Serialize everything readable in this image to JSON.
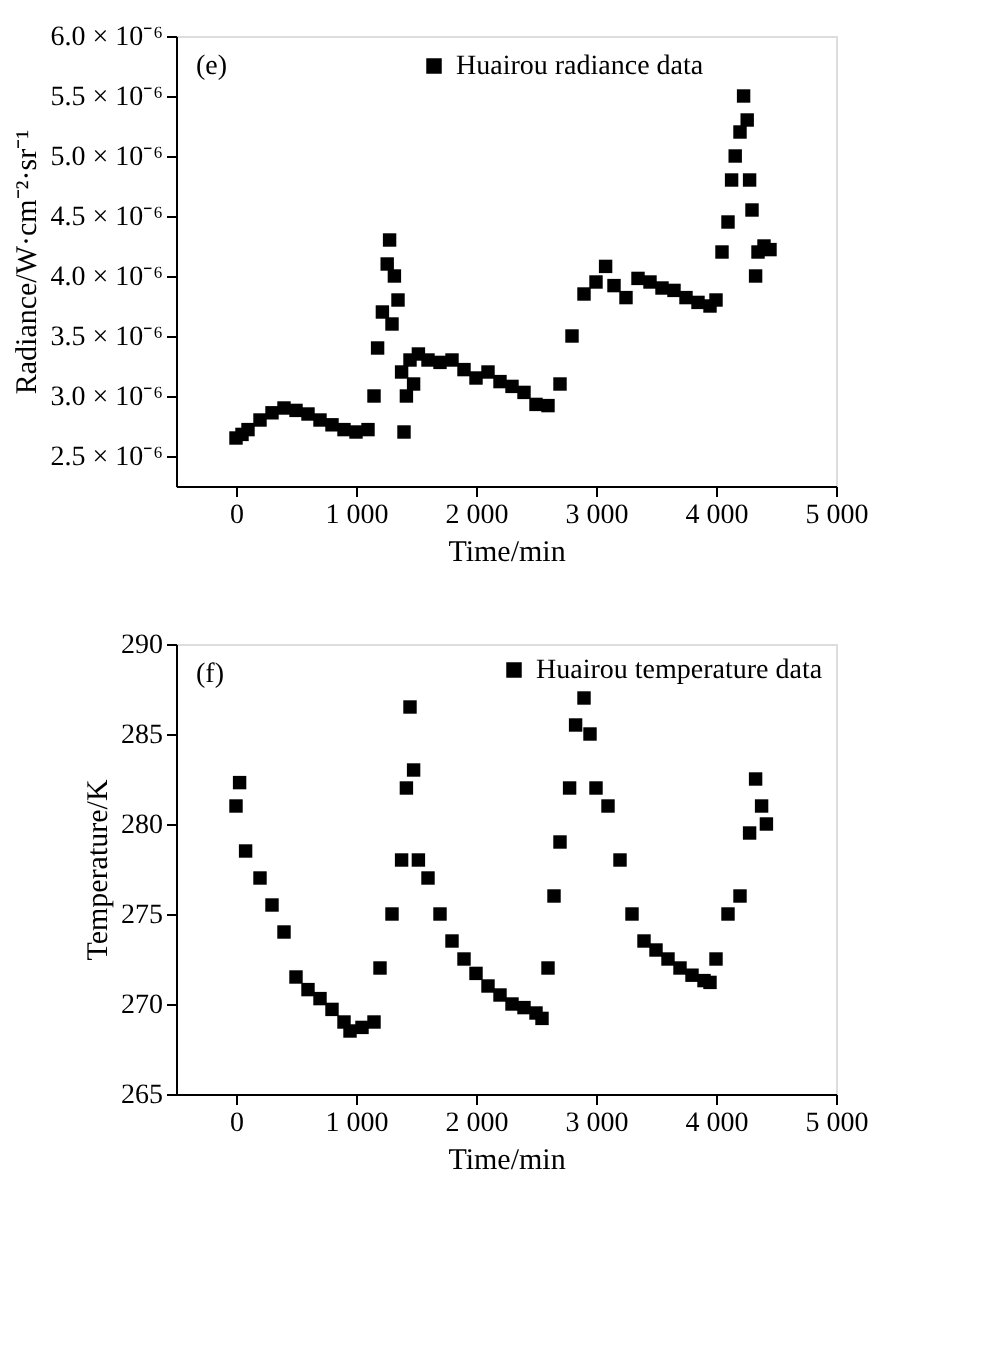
{
  "chart_data": [
    {
      "type": "scatter",
      "annotations": [
        "(e)"
      ],
      "xlabel": "Time/min",
      "ylabel": "Radiance/W·cm⁻²·sr⁻¹",
      "marker": "square",
      "legend": "top",
      "grid": false,
      "xlim": [
        -500,
        5000
      ],
      "xticks": [
        {
          "value": 0,
          "label": "0"
        },
        {
          "value": 1000,
          "label": "1 000"
        },
        {
          "value": 2000,
          "label": "2 000"
        },
        {
          "value": 3000,
          "label": "3 000"
        },
        {
          "value": 4000,
          "label": "4 000"
        },
        {
          "value": 5000,
          "label": "5 000"
        }
      ],
      "ylim": [
        2.25e-06,
        6e-06
      ],
      "yticks": [
        {
          "value": 2.5e-06,
          "label": "2.5 × 10⁻⁶"
        },
        {
          "value": 3e-06,
          "label": "3.0 × 10⁻⁶"
        },
        {
          "value": 3.5e-06,
          "label": "3.5 × 10⁻⁶"
        },
        {
          "value": 4e-06,
          "label": "4.0 × 10⁻⁶"
        },
        {
          "value": 4.5e-06,
          "label": "4.5 × 10⁻⁶"
        },
        {
          "value": 5e-06,
          "label": "5.0 × 10⁻⁶"
        },
        {
          "value": 5.5e-06,
          "label": "5.5 × 10⁻⁶"
        },
        {
          "value": 6e-06,
          "label": "6.0 × 10⁻⁶"
        }
      ],
      "series": [
        {
          "name": "Huairou radiance data",
          "color": "#000000",
          "x": [
            0,
            50,
            100,
            200,
            300,
            400,
            500,
            600,
            700,
            800,
            900,
            1000,
            1100,
            1150,
            1180,
            1220,
            1260,
            1280,
            1300,
            1320,
            1350,
            1380,
            1400,
            1420,
            1450,
            1480,
            1520,
            1600,
            1700,
            1800,
            1900,
            2000,
            2100,
            2200,
            2300,
            2400,
            2500,
            2600,
            2700,
            2800,
            2900,
            3000,
            3080,
            3150,
            3250,
            3350,
            3450,
            3550,
            3650,
            3750,
            3850,
            3950,
            4000,
            4050,
            4100,
            4130,
            4160,
            4200,
            4230,
            4260,
            4280,
            4300,
            4330,
            4350,
            4400,
            4450
          ],
          "values": [
            2.65e-06,
            2.68e-06,
            2.72e-06,
            2.8e-06,
            2.86e-06,
            2.9e-06,
            2.88e-06,
            2.85e-06,
            2.8e-06,
            2.76e-06,
            2.72e-06,
            2.7e-06,
            2.72e-06,
            3e-06,
            3.4e-06,
            3.7e-06,
            4.1e-06,
            4.3e-06,
            3.6e-06,
            4e-06,
            3.8e-06,
            3.2e-06,
            2.7e-06,
            3e-06,
            3.3e-06,
            3.1e-06,
            3.35e-06,
            3.3e-06,
            3.28e-06,
            3.3e-06,
            3.22e-06,
            3.15e-06,
            3.2e-06,
            3.12e-06,
            3.08e-06,
            3.03e-06,
            2.93e-06,
            2.92e-06,
            3.1e-06,
            3.5e-06,
            3.85e-06,
            3.95e-06,
            4.08e-06,
            3.92e-06,
            3.82e-06,
            3.98e-06,
            3.95e-06,
            3.9e-06,
            3.88e-06,
            3.82e-06,
            3.78e-06,
            3.75e-06,
            3.8e-06,
            4.2e-06,
            4.45e-06,
            4.8e-06,
            5e-06,
            5.2e-06,
            5.5e-06,
            5.3e-06,
            4.8e-06,
            4.55e-06,
            4e-06,
            4.2e-06,
            4.25e-06,
            4.22e-06
          ]
        }
      ]
    },
    {
      "type": "scatter",
      "annotations": [
        "(f)"
      ],
      "xlabel": "Time/min",
      "ylabel": "Temperature/K",
      "marker": "square",
      "legend": "top right",
      "grid": false,
      "xlim": [
        -500,
        5000
      ],
      "xticks": [
        {
          "value": 0,
          "label": "0"
        },
        {
          "value": 1000,
          "label": "1 000"
        },
        {
          "value": 2000,
          "label": "2 000"
        },
        {
          "value": 3000,
          "label": "3 000"
        },
        {
          "value": 4000,
          "label": "4 000"
        },
        {
          "value": 5000,
          "label": "5 000"
        }
      ],
      "ylim": [
        265,
        290
      ],
      "yticks": [
        265,
        270,
        275,
        280,
        285,
        290
      ],
      "series": [
        {
          "name": "Huairou temperature data",
          "color": "#000000",
          "x": [
            0,
            30,
            80,
            200,
            300,
            400,
            500,
            600,
            700,
            800,
            900,
            950,
            1050,
            1150,
            1200,
            1300,
            1380,
            1420,
            1450,
            1480,
            1520,
            1600,
            1700,
            1800,
            1900,
            2000,
            2100,
            2200,
            2300,
            2400,
            2500,
            2550,
            2600,
            2650,
            2700,
            2780,
            2830,
            2900,
            2950,
            3000,
            3100,
            3200,
            3300,
            3400,
            3500,
            3600,
            3700,
            3800,
            3900,
            3950,
            4000,
            4100,
            4200,
            4280,
            4330,
            4380,
            4420
          ],
          "values": [
            281,
            282.3,
            278.5,
            277,
            275.5,
            274,
            271.5,
            270.8,
            270.3,
            269.7,
            269,
            268.5,
            268.7,
            269,
            272,
            275,
            278,
            282,
            286.5,
            283,
            278,
            277,
            275,
            273.5,
            272.5,
            271.7,
            271,
            270.5,
            270,
            269.8,
            269.5,
            269.2,
            272,
            276,
            279,
            282,
            285.5,
            287,
            285,
            282,
            281,
            278,
            275,
            273.5,
            273,
            272.5,
            272,
            271.6,
            271.3,
            271.2,
            272.5,
            275,
            276,
            279.5,
            282.5,
            281,
            280
          ]
        }
      ]
    }
  ]
}
